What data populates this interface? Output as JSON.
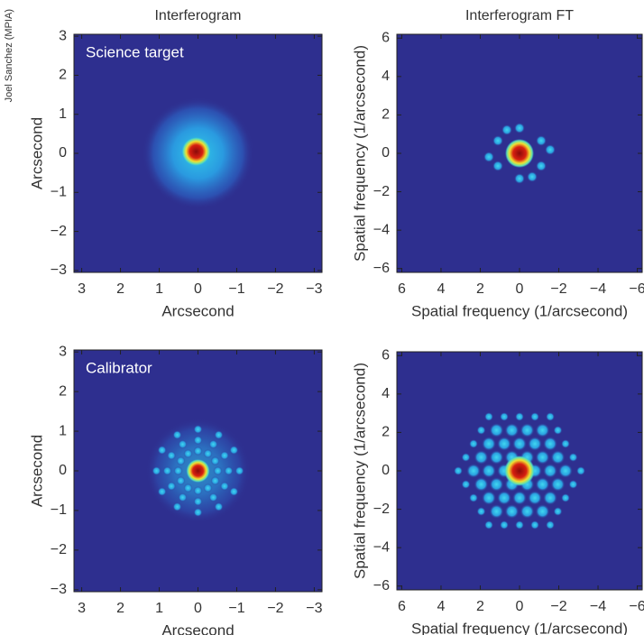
{
  "credit": "Joel Sanchez (MPIA)",
  "chart_data": [
    {
      "type": "heatmap",
      "title": "Interferogram",
      "annotation": "Science target",
      "xlabel": "Arcsecond",
      "ylabel": "Arcsecond",
      "xlim": [
        3.2,
        -3.2
      ],
      "ylim": [
        -3.05,
        3.05
      ],
      "xticks": [
        3,
        2,
        1,
        0,
        {
          "value": -1,
          "label": "−1"
        },
        {
          "value": -2,
          "label": "−2"
        },
        {
          "value": -3,
          "label": "−3"
        }
      ],
      "yticks": [
        {
          "value": -3,
          "label": "−3"
        },
        {
          "value": -2,
          "label": "−2"
        },
        {
          "value": -1,
          "label": "−1"
        },
        0,
        1,
        2,
        3
      ]
    },
    {
      "type": "heatmap",
      "title": "Interferogram FT",
      "xlabel": "Spatial frequency (1/arcsecond)",
      "ylabel": "Spatial frequency (1/arcsecond)",
      "xlim": [
        6.25,
        -6.25
      ],
      "ylim": [
        -6.2,
        6.2
      ],
      "xticks": [
        6,
        4,
        2,
        0,
        {
          "value": -2,
          "label": "−2"
        },
        {
          "value": -4,
          "label": "−4"
        },
        {
          "value": -6,
          "label": "−6"
        }
      ],
      "yticks": [
        {
          "value": -6,
          "label": "−6"
        },
        {
          "value": -4,
          "label": "−4"
        },
        {
          "value": -2,
          "label": "−2"
        },
        0,
        2,
        4,
        6
      ]
    },
    {
      "type": "heatmap",
      "annotation": "Calibrator",
      "xlabel": "Arcsecond",
      "ylabel": "Arcsecond",
      "xlim": [
        3.2,
        -3.2
      ],
      "ylim": [
        -3.05,
        3.05
      ],
      "xticks": [
        3,
        2,
        1,
        0,
        {
          "value": -1,
          "label": "−1"
        },
        {
          "value": -2,
          "label": "−2"
        },
        {
          "value": -3,
          "label": "−3"
        }
      ],
      "yticks": [
        {
          "value": -3,
          "label": "−3"
        },
        {
          "value": -2,
          "label": "−2"
        },
        {
          "value": -1,
          "label": "−1"
        },
        0,
        1,
        2,
        3
      ]
    },
    {
      "type": "heatmap",
      "xlabel": "Spatial frequency (1/arcsecond)",
      "ylabel": "Spatial frequency (1/arcsecond)",
      "xlim": [
        6.25,
        -6.25
      ],
      "ylim": [
        -6.2,
        6.2
      ],
      "xticks": [
        6,
        4,
        2,
        0,
        {
          "value": -2,
          "label": "−2"
        },
        {
          "value": -4,
          "label": "−4"
        },
        {
          "value": -6,
          "label": "−6"
        }
      ],
      "yticks": [
        {
          "value": -6,
          "label": "−6"
        },
        {
          "value": -4,
          "label": "−4"
        },
        {
          "value": -2,
          "label": "−2"
        },
        0,
        2,
        4,
        6
      ]
    }
  ]
}
